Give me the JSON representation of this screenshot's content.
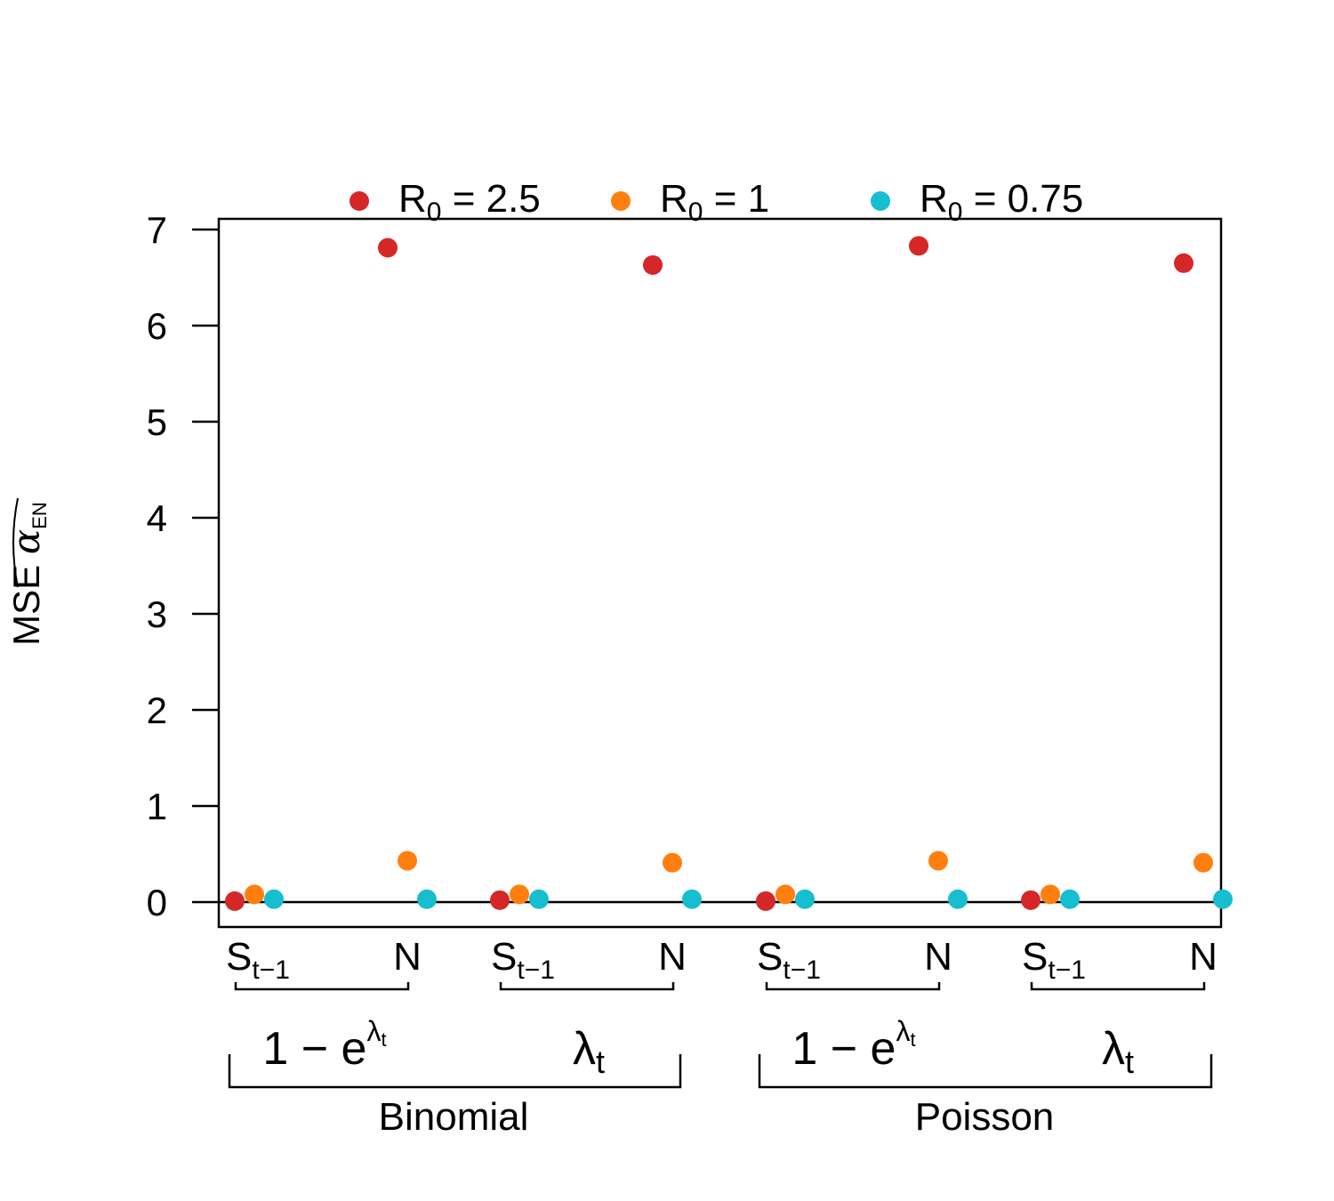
{
  "chart_data": {
    "type": "scatter",
    "ylabel": "MSE α̂EN",
    "ylim": [
      -0.26,
      7.11
    ],
    "y_ticks": [
      0,
      1,
      2,
      3,
      4,
      5,
      6,
      7
    ],
    "grid": false,
    "reference_line_y": 0,
    "legend_placement": "top-outside",
    "categories": [
      "St−1",
      "N",
      "St−1",
      "N",
      "St−1",
      "N",
      "St−1",
      "N"
    ],
    "series": [
      {
        "name": "R0 = 2.5",
        "color": "#d62728",
        "values": [
          0.01,
          6.81,
          0.02,
          6.63,
          0.01,
          6.83,
          0.02,
          6.65
        ]
      },
      {
        "name": "R0 = 1",
        "color": "#ff7f0e",
        "values": [
          0.08,
          0.43,
          0.08,
          0.41,
          0.08,
          0.43,
          0.08,
          0.41
        ]
      },
      {
        "name": "R0 = 0.75",
        "color": "#17becf",
        "values": [
          0.03,
          0.03,
          0.03,
          0.03,
          0.03,
          0.03,
          0.03,
          0.03
        ]
      }
    ],
    "legend": [
      {
        "base": "R",
        "sub": "0",
        "rest": " = 2.5",
        "color": "#d62728"
      },
      {
        "base": "R",
        "sub": "0",
        "rest": " = 1",
        "color": "#ff7f0e"
      },
      {
        "base": "R",
        "sub": "0",
        "rest": " = 0.75",
        "color": "#17becf"
      }
    ],
    "y_axis_label": {
      "main": "MSE ",
      "greek": "α",
      "sub": "EN"
    },
    "x_labels": [
      {
        "base": "S",
        "sub": "t−1"
      },
      {
        "base": "N",
        "sub": ""
      },
      {
        "base": "S",
        "sub": "t−1"
      },
      {
        "base": "N",
        "sub": ""
      },
      {
        "base": "S",
        "sub": "t−1"
      },
      {
        "base": "N",
        "sub": ""
      },
      {
        "base": "S",
        "sub": "t−1"
      },
      {
        "base": "N",
        "sub": ""
      }
    ],
    "link_groups": [
      {
        "base": "1 − e",
        "sup": "λ",
        "supsub": "t"
      },
      {
        "base": "λ",
        "sub": "t"
      },
      {
        "base": "1 − e",
        "sup": "λ",
        "supsub": "t"
      },
      {
        "base": "λ",
        "sub": "t"
      }
    ],
    "distribution_groups": [
      "Binomial",
      "Poisson"
    ]
  }
}
